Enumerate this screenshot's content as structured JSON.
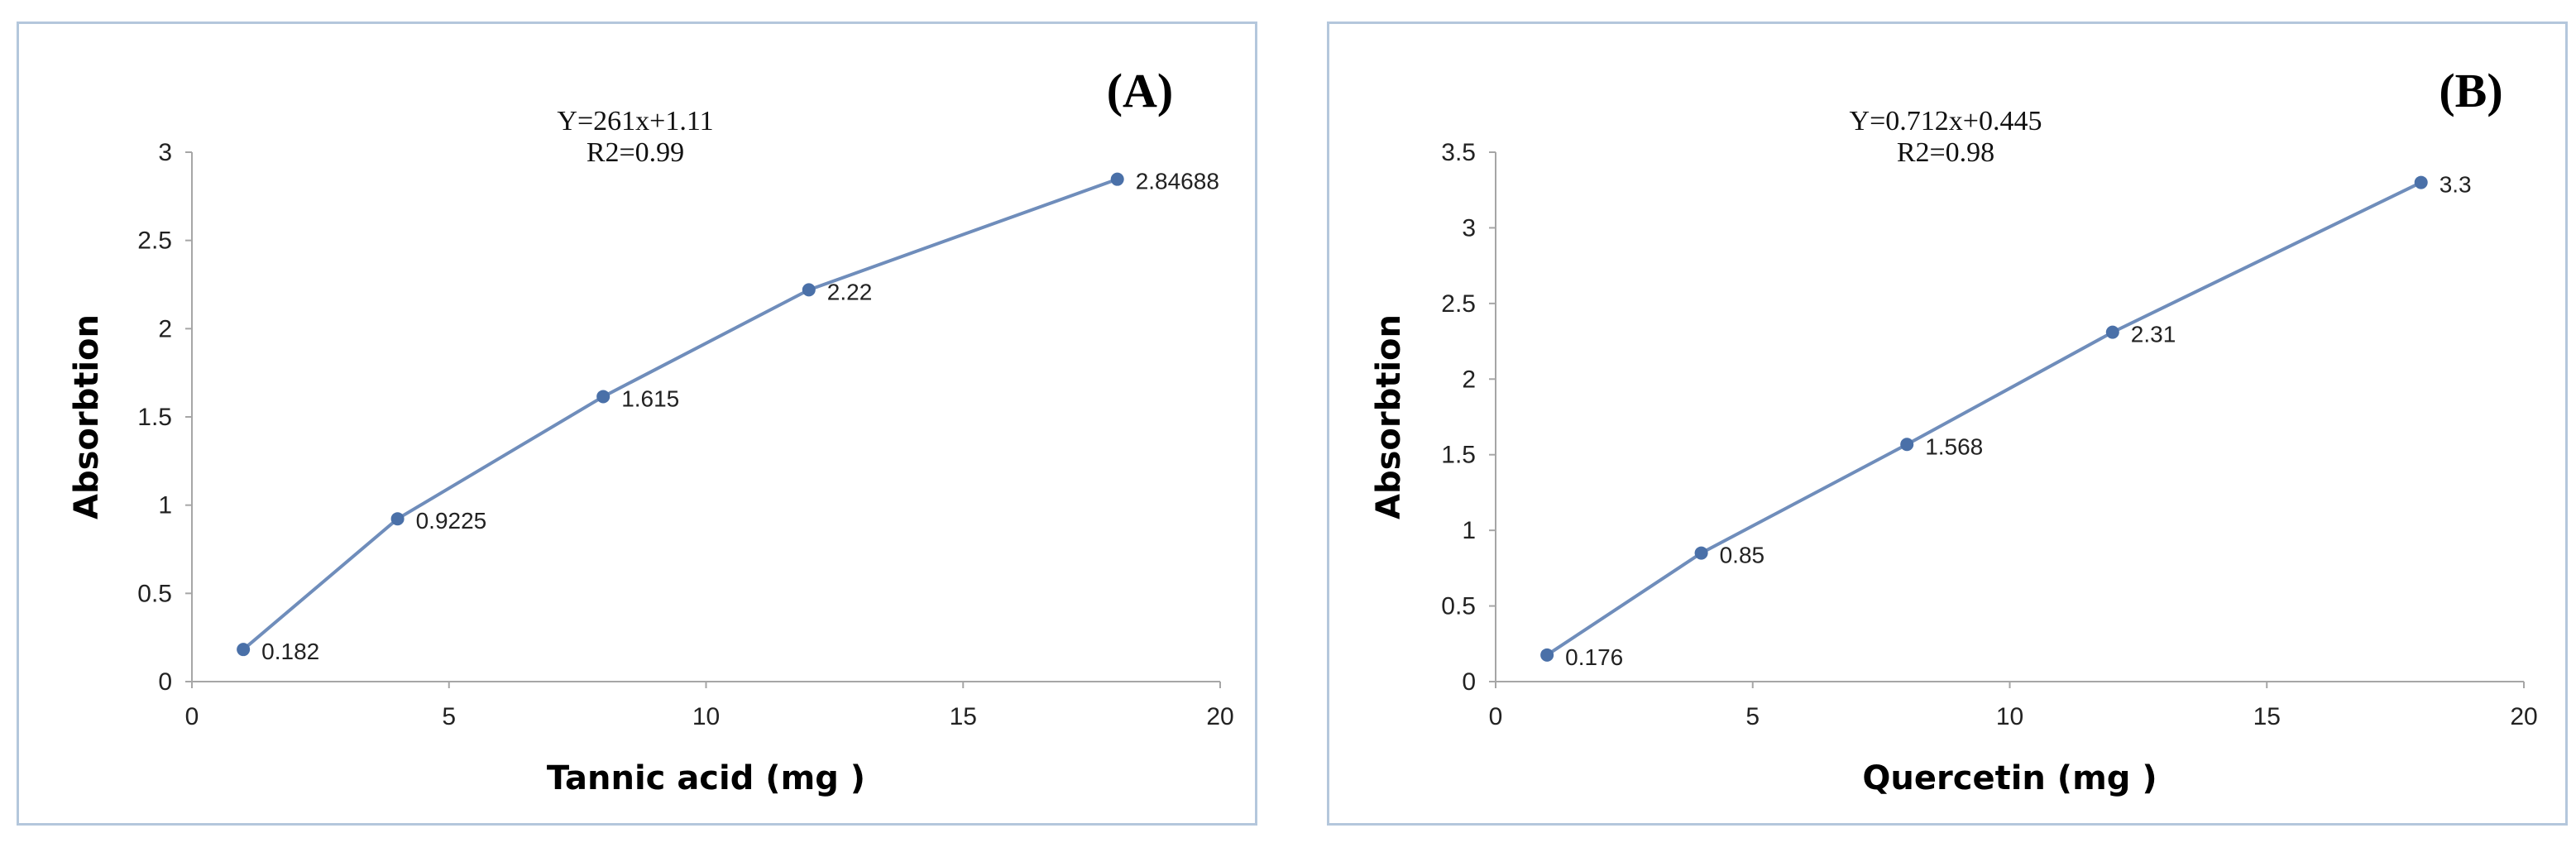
{
  "chart_data": [
    {
      "type": "line",
      "panel_tag": "(A)",
      "equation": "Y=261x+1.11",
      "r2": "R2=0.99",
      "xlabel": "Tannic acid (mg )",
      "ylabel": "Absorbtion",
      "xlim": [
        0,
        20
      ],
      "ylim": [
        0,
        3
      ],
      "xticks": [
        0,
        5,
        10,
        15,
        20
      ],
      "yticks": [
        0,
        0.5,
        1,
        1.5,
        2,
        2.5,
        3
      ],
      "x": [
        1,
        4,
        8,
        12,
        18
      ],
      "y": [
        0.182,
        0.9225,
        1.615,
        2.22,
        2.84688
      ],
      "data_labels": [
        "0.182",
        "0.9225",
        "1.615",
        "2.22",
        "2.84688"
      ],
      "grid": false,
      "line_color": "#6f8dbb",
      "marker_color": "#4a70a8"
    },
    {
      "type": "line",
      "panel_tag": "(B)",
      "equation": "Y=0.712x+0.445",
      "r2": "R2=0.98",
      "xlabel": "Quercetin (mg )",
      "ylabel": "Absorbtion",
      "xlim": [
        0,
        20
      ],
      "ylim": [
        0,
        3.5
      ],
      "xticks": [
        0,
        5,
        10,
        15,
        20
      ],
      "yticks": [
        0,
        0.5,
        1,
        1.5,
        2,
        2.5,
        3,
        3.5
      ],
      "x": [
        1,
        4,
        8,
        12,
        18
      ],
      "y": [
        0.176,
        0.85,
        1.568,
        2.31,
        3.3
      ],
      "data_labels": [
        "0.176",
        "0.85",
        "1.568",
        "2.31",
        "3.3"
      ],
      "grid": false,
      "line_color": "#6f8dbb",
      "marker_color": "#4a70a8"
    }
  ]
}
